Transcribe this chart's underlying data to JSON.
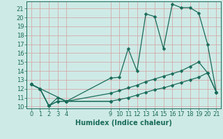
{
  "xlabel": "Humidex (Indice chaleur)",
  "bg_color": "#ceeae6",
  "grid_color": "#d4a0a0",
  "line_color": "#1a6b5a",
  "line1_x": [
    0,
    1,
    2,
    3,
    4,
    9,
    10,
    11,
    12,
    13,
    14,
    15,
    16,
    17,
    18,
    19,
    20,
    21
  ],
  "line1_y": [
    12.5,
    12.0,
    10.1,
    11.0,
    10.6,
    13.2,
    13.3,
    16.5,
    14.0,
    20.4,
    20.1,
    16.5,
    21.5,
    21.1,
    21.1,
    20.5,
    17.0,
    11.6
  ],
  "line2_x": [
    0,
    1,
    2,
    3,
    4,
    9,
    10,
    11,
    12,
    13,
    14,
    15,
    16,
    17,
    18,
    19,
    20,
    21
  ],
  "line2_y": [
    12.5,
    12.0,
    10.1,
    10.6,
    10.6,
    11.5,
    11.8,
    12.1,
    12.4,
    12.8,
    13.1,
    13.4,
    13.7,
    14.0,
    14.5,
    15.0,
    13.8,
    11.6
  ],
  "line3_x": [
    0,
    1,
    2,
    3,
    4,
    9,
    10,
    11,
    12,
    13,
    14,
    15,
    16,
    17,
    18,
    19,
    20,
    21
  ],
  "line3_y": [
    12.5,
    12.0,
    10.1,
    10.6,
    10.6,
    10.6,
    10.8,
    11.0,
    11.3,
    11.6,
    11.9,
    12.1,
    12.4,
    12.7,
    13.0,
    13.3,
    13.8,
    11.6
  ],
  "line4_x": [
    0,
    4,
    9
  ],
  "line4_y": [
    12.5,
    10.6,
    10.6
  ],
  "xlim": [
    -0.5,
    21.5
  ],
  "ylim": [
    9.8,
    21.8
  ],
  "xticks": [
    0,
    1,
    2,
    3,
    4,
    9,
    10,
    11,
    12,
    13,
    14,
    15,
    16,
    17,
    18,
    19,
    20,
    21
  ],
  "yticks": [
    10,
    11,
    12,
    13,
    14,
    15,
    16,
    17,
    18,
    19,
    20,
    21
  ],
  "markersize": 2.5,
  "linewidth": 0.9,
  "xlabel_fontsize": 7,
  "tick_fontsize": 6
}
